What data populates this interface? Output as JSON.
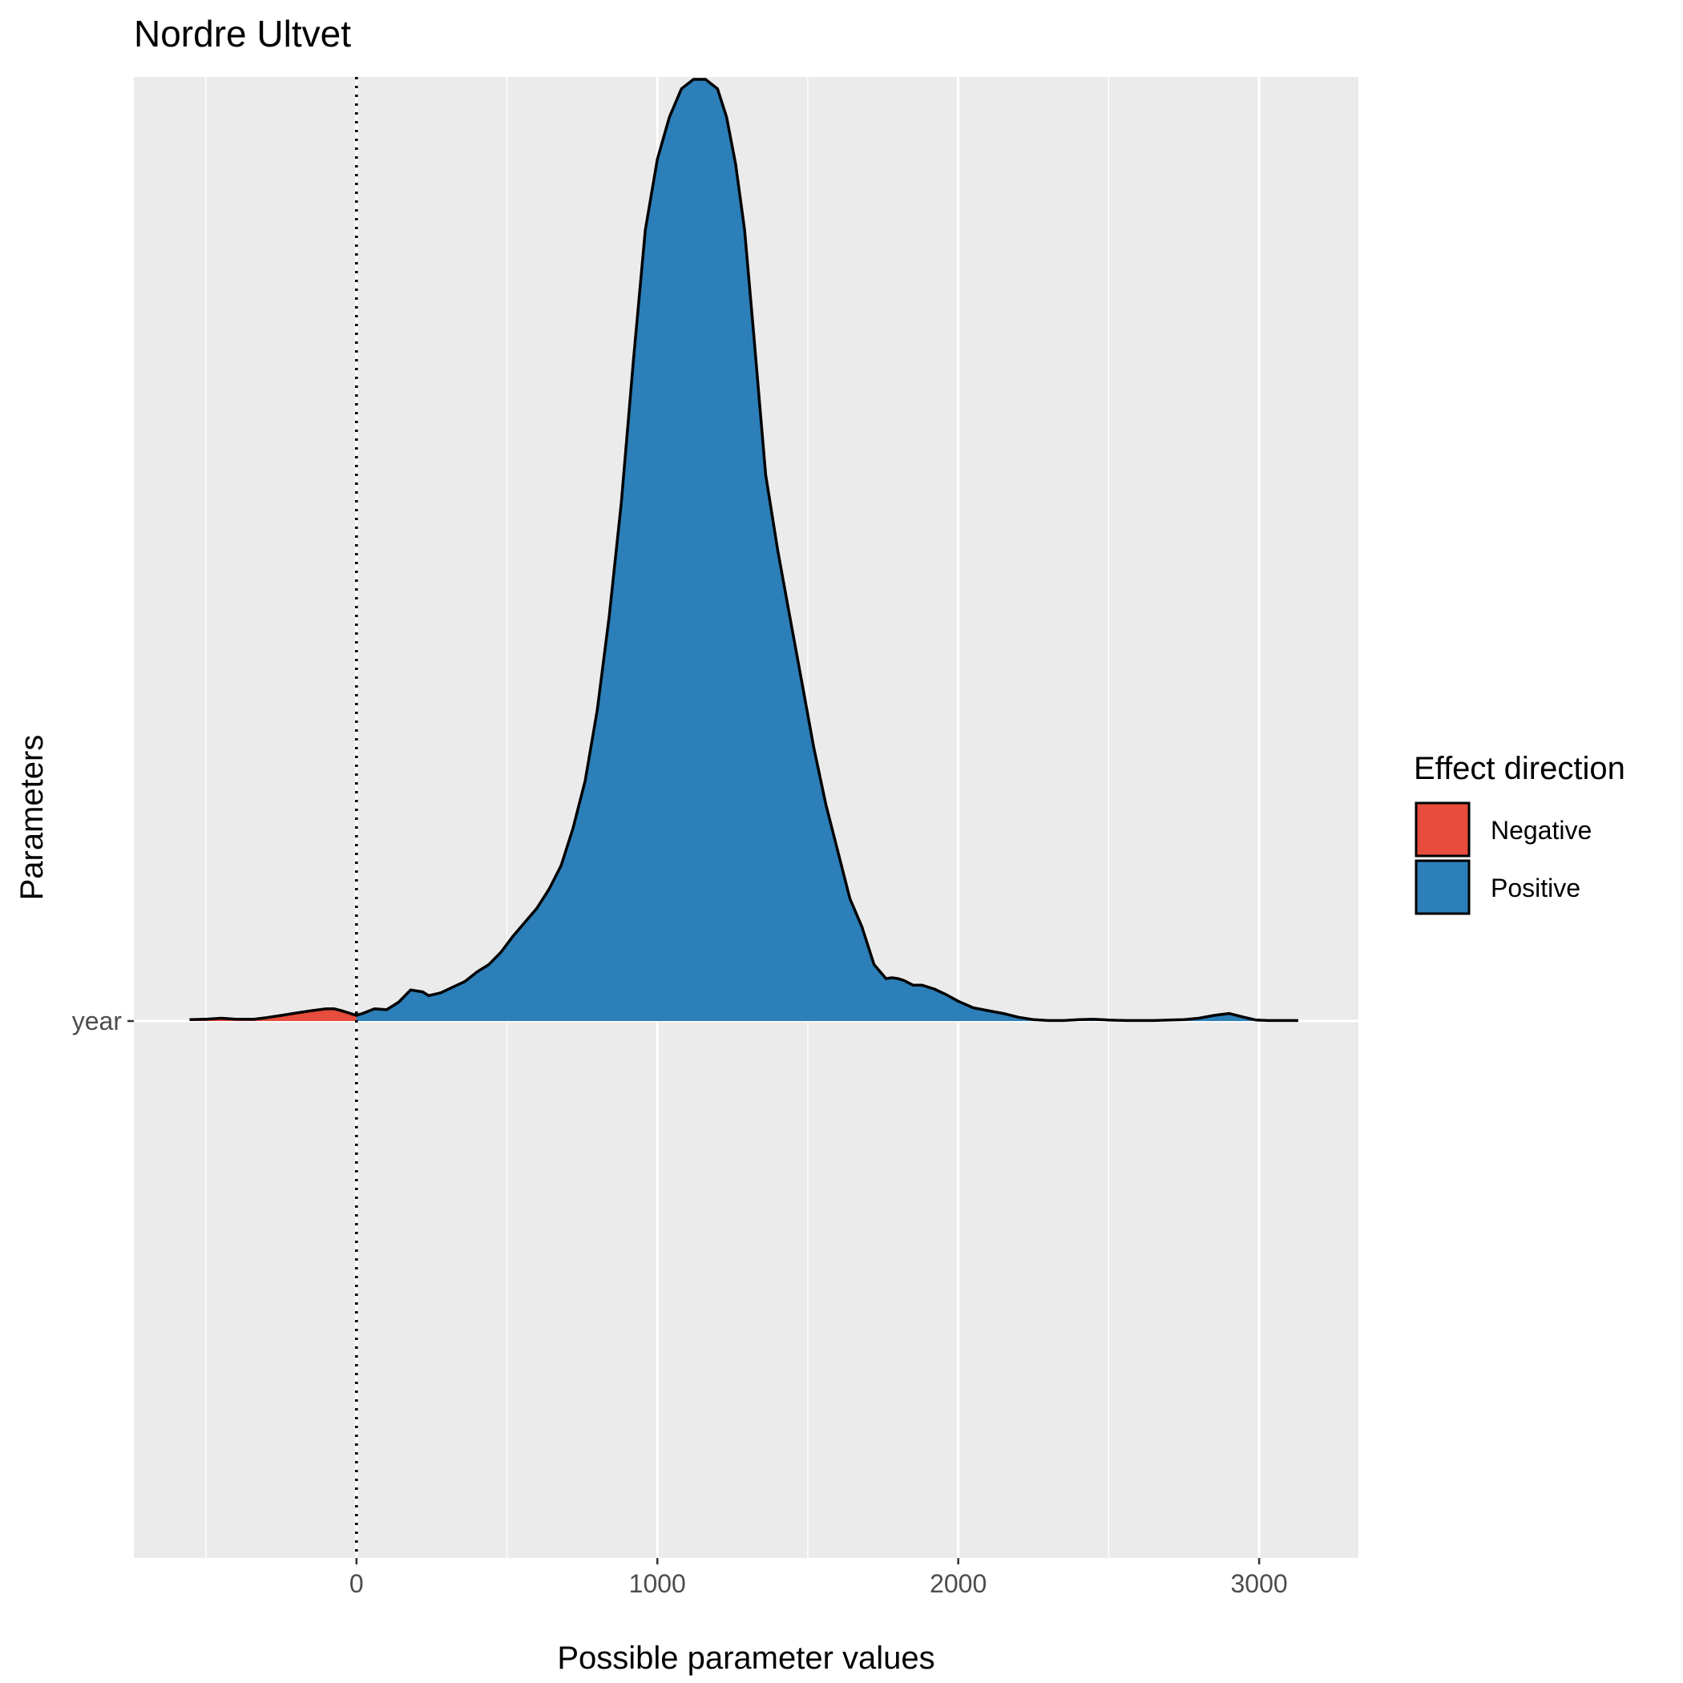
{
  "chart_data": {
    "type": "area",
    "title": "Nordre Ultvet",
    "xlabel": "Possible parameter values",
    "ylabel": "Parameters",
    "xlim": [
      -740,
      3330
    ],
    "x_ticks": [
      0,
      1000,
      2000,
      3000
    ],
    "x_tick_labels": [
      "0",
      "1000",
      "2000",
      "3000"
    ],
    "x_minor_ticks": [
      -500,
      500,
      1500,
      2500
    ],
    "y_categories": [
      "year"
    ],
    "vline": {
      "x": 0,
      "style": "dotted"
    },
    "grid": true,
    "legend": {
      "title": "Effect direction",
      "position": "right",
      "entries": [
        {
          "label": "Negative",
          "color": "#E74C3C"
        },
        {
          "label": "Positive",
          "color": "#2C7FB8"
        }
      ]
    },
    "series": [
      {
        "name": "year",
        "density_max": 1,
        "x": [
          -555,
          -500,
          -450,
          -400,
          -340,
          -300,
          -250,
          -200,
          -150,
          -100,
          -75,
          -50,
          -30,
          0,
          20,
          60,
          100,
          140,
          180,
          220,
          240,
          280,
          320,
          360,
          400,
          440,
          480,
          520,
          560,
          600,
          640,
          680,
          720,
          760,
          800,
          840,
          880,
          920,
          960,
          1000,
          1040,
          1080,
          1120,
          1160,
          1200,
          1230,
          1260,
          1290,
          1320,
          1360,
          1400,
          1440,
          1480,
          1520,
          1560,
          1600,
          1640,
          1680,
          1720,
          1760,
          1780,
          1800,
          1820,
          1850,
          1880,
          1920,
          1960,
          2000,
          2050,
          2100,
          2150,
          2200,
          2250,
          2300,
          2350,
          2400,
          2450,
          2500,
          2560,
          2600,
          2650,
          2700,
          2750,
          2800,
          2850,
          2900,
          2950,
          2990,
          3030,
          3080,
          3130
        ],
        "y": [
          0.0015,
          0.002,
          0.003,
          0.002,
          0.002,
          0.0035,
          0.006,
          0.0085,
          0.011,
          0.013,
          0.013,
          0.011,
          0.009,
          0.006,
          0.008,
          0.013,
          0.012,
          0.02,
          0.033,
          0.031,
          0.027,
          0.03,
          0.036,
          0.042,
          0.052,
          0.06,
          0.073,
          0.09,
          0.105,
          0.12,
          0.14,
          0.165,
          0.205,
          0.255,
          0.33,
          0.43,
          0.55,
          0.7,
          0.84,
          0.915,
          0.96,
          0.99,
          1.0,
          1.0,
          0.99,
          0.96,
          0.91,
          0.84,
          0.73,
          0.58,
          0.5,
          0.43,
          0.36,
          0.29,
          0.23,
          0.18,
          0.13,
          0.1,
          0.06,
          0.045,
          0.046,
          0.045,
          0.043,
          0.038,
          0.038,
          0.034,
          0.028,
          0.021,
          0.014,
          0.011,
          0.008,
          0.004,
          0.0015,
          0.0005,
          0.0005,
          0.0015,
          0.002,
          0.001,
          0.0005,
          0.0005,
          0.0005,
          0.001,
          0.0015,
          0.003,
          0.006,
          0.008,
          0.004,
          0.001,
          0.0005,
          0.0005,
          0.0005
        ]
      }
    ]
  }
}
